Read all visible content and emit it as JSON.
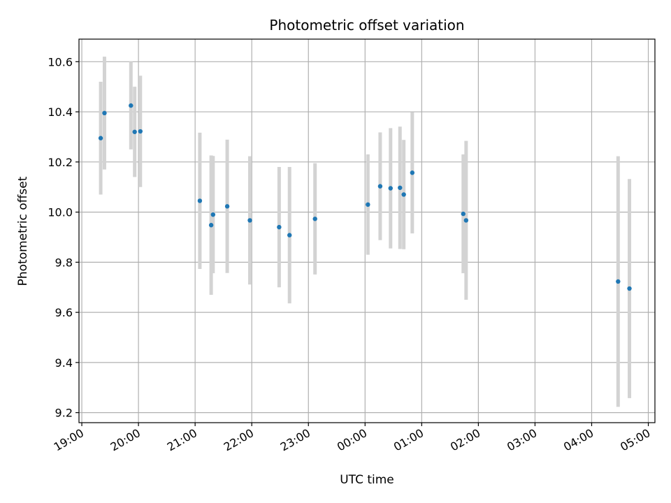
{
  "chart_data": {
    "type": "scatter",
    "title": "Photometric offset variation",
    "xlabel": "UTC time",
    "ylabel": "Photometric offset",
    "grid": true,
    "xlim": [
      "18:57",
      "05:07"
    ],
    "ylim": [
      9.16,
      10.69
    ],
    "x_ticks": [
      "19:00",
      "20:00",
      "21:00",
      "22:00",
      "23:00",
      "00:00",
      "01:00",
      "02:00",
      "03:00",
      "04:00",
      "05:00"
    ],
    "y_ticks": [
      "9.2",
      "9.4",
      "9.6",
      "9.8",
      "10.0",
      "10.2",
      "10.4",
      "10.6"
    ],
    "series": [
      {
        "marker_color": "#1f77b4",
        "errorbar_color": "#d3d3d3",
        "points": [
          {
            "x": "19:20",
            "y": 10.295,
            "err": 0.225
          },
          {
            "x": "19:24",
            "y": 10.395,
            "err": 0.225
          },
          {
            "x": "19:52",
            "y": 10.425,
            "err": 0.175
          },
          {
            "x": "19:56",
            "y": 10.32,
            "err": 0.18
          },
          {
            "x": "20:02",
            "y": 10.322,
            "err": 0.222
          },
          {
            "x": "21:05",
            "y": 10.045,
            "err": 0.272
          },
          {
            "x": "21:17",
            "y": 9.948,
            "err": 0.278
          },
          {
            "x": "21:19",
            "y": 9.99,
            "err": 0.234
          },
          {
            "x": "21:34",
            "y": 10.023,
            "err": 0.266
          },
          {
            "x": "21:58",
            "y": 9.967,
            "err": 0.256
          },
          {
            "x": "22:29",
            "y": 9.94,
            "err": 0.24
          },
          {
            "x": "22:40",
            "y": 9.908,
            "err": 0.272
          },
          {
            "x": "23:07",
            "y": 9.973,
            "err": 0.222
          },
          {
            "x": "00:03",
            "y": 10.03,
            "err": 0.2
          },
          {
            "x": "00:16",
            "y": 10.103,
            "err": 0.215
          },
          {
            "x": "00:27",
            "y": 10.095,
            "err": 0.24
          },
          {
            "x": "00:37",
            "y": 10.097,
            "err": 0.244
          },
          {
            "x": "00:41",
            "y": 10.07,
            "err": 0.218
          },
          {
            "x": "00:50",
            "y": 10.157,
            "err": 0.242
          },
          {
            "x": "01:44",
            "y": 9.993,
            "err": 0.237
          },
          {
            "x": "01:47",
            "y": 9.967,
            "err": 0.317
          },
          {
            "x": "04:28",
            "y": 9.723,
            "err": 0.5
          },
          {
            "x": "04:40",
            "y": 9.695,
            "err": 0.437
          }
        ]
      }
    ]
  }
}
